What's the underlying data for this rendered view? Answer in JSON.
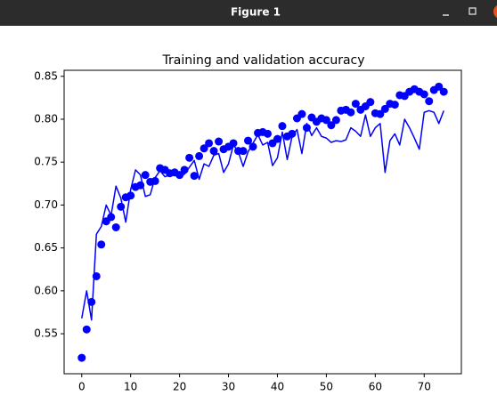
{
  "window_title": "Figure 1",
  "chart_data": {
    "type": "line",
    "title": "Training and validation accuracy",
    "x": [
      0,
      1,
      2,
      3,
      4,
      5,
      6,
      7,
      8,
      9,
      10,
      11,
      12,
      13,
      14,
      15,
      16,
      17,
      18,
      19,
      20,
      21,
      22,
      23,
      24,
      25,
      26,
      27,
      28,
      29,
      30,
      31,
      32,
      33,
      34,
      35,
      36,
      37,
      38,
      39,
      40,
      41,
      42,
      43,
      44,
      45,
      46,
      47,
      48,
      49,
      50,
      51,
      52,
      53,
      54,
      55,
      56,
      57,
      58,
      59,
      60,
      61,
      62,
      63,
      64,
      65,
      66,
      67,
      68,
      69,
      70,
      71,
      72,
      73,
      74
    ],
    "series": [
      {
        "color": "#0000ff",
        "style": "dots",
        "values": [
          0.522,
          0.555,
          0.587,
          0.617,
          0.654,
          0.681,
          0.686,
          0.674,
          0.698,
          0.709,
          0.711,
          0.721,
          0.723,
          0.735,
          0.727,
          0.728,
          0.743,
          0.741,
          0.737,
          0.738,
          0.735,
          0.741,
          0.755,
          0.734,
          0.757,
          0.766,
          0.772,
          0.763,
          0.774,
          0.765,
          0.768,
          0.772,
          0.763,
          0.763,
          0.775,
          0.768,
          0.784,
          0.785,
          0.783,
          0.772,
          0.777,
          0.792,
          0.78,
          0.783,
          0.801,
          0.806,
          0.79,
          0.802,
          0.797,
          0.801,
          0.799,
          0.793,
          0.799,
          0.81,
          0.811,
          0.808,
          0.818,
          0.811,
          0.815,
          0.82,
          0.807,
          0.806,
          0.812,
          0.818,
          0.817,
          0.828,
          0.827,
          0.832,
          0.835,
          0.832,
          0.829,
          0.821,
          0.834,
          0.838,
          0.832
        ]
      },
      {
        "color": "#0000ff",
        "style": "line",
        "values": [
          0.568,
          0.6,
          0.566,
          0.666,
          0.675,
          0.7,
          0.688,
          0.722,
          0.708,
          0.68,
          0.718,
          0.741,
          0.735,
          0.71,
          0.712,
          0.732,
          0.74,
          0.733,
          0.735,
          0.74,
          0.733,
          0.736,
          0.744,
          0.752,
          0.73,
          0.748,
          0.745,
          0.758,
          0.76,
          0.738,
          0.748,
          0.77,
          0.762,
          0.745,
          0.762,
          0.772,
          0.782,
          0.77,
          0.773,
          0.746,
          0.755,
          0.785,
          0.753,
          0.78,
          0.788,
          0.76,
          0.795,
          0.781,
          0.79,
          0.78,
          0.778,
          0.773,
          0.775,
          0.774,
          0.776,
          0.79,
          0.786,
          0.78,
          0.805,
          0.78,
          0.79,
          0.795,
          0.738,
          0.775,
          0.783,
          0.77,
          0.8,
          0.79,
          0.778,
          0.765,
          0.808,
          0.81,
          0.808,
          0.795,
          0.81
        ]
      }
    ],
    "xlim": [
      -3.6,
      77.6
    ],
    "xticks": [
      0,
      10,
      20,
      30,
      40,
      50,
      60,
      70
    ],
    "ylim": [
      0.5034,
      0.857
    ],
    "yticks": [
      {
        "value": 0.55,
        "label": "0.55"
      },
      {
        "value": 0.6,
        "label": "0.60"
      },
      {
        "value": 0.65,
        "label": "0.65"
      },
      {
        "value": 0.7,
        "label": "0.70"
      },
      {
        "value": 0.75,
        "label": "0.75"
      },
      {
        "value": 0.8,
        "label": "0.80"
      },
      {
        "value": 0.85,
        "label": "0.85"
      }
    ],
    "grid": false
  }
}
